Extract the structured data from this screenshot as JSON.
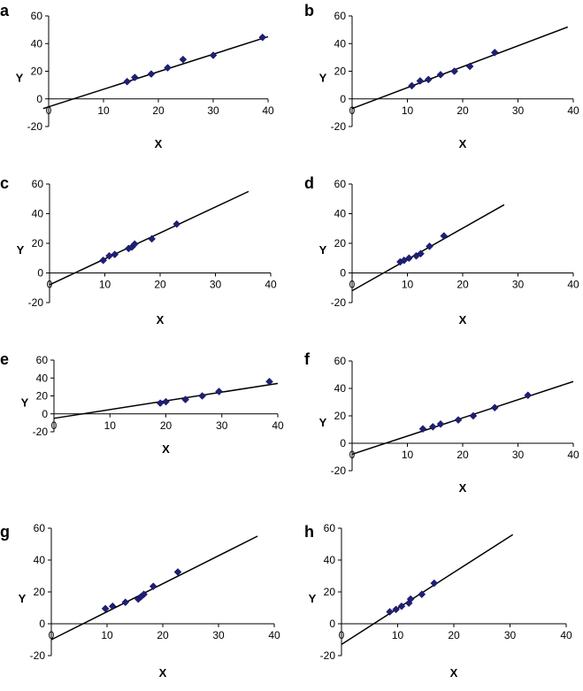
{
  "colors": {
    "marker": "#1f1f7a",
    "axis": "#000000",
    "line": "#000000"
  },
  "chart_data": [
    {
      "panel": "a",
      "type": "scatter",
      "xlabel": "X",
      "ylabel": "Y",
      "xlim": [
        0,
        40
      ],
      "ylim": [
        -20,
        60
      ],
      "xticks": [
        "0",
        "10",
        "20",
        "30",
        "40"
      ],
      "yticks": [
        "-20",
        "0",
        "20",
        "40",
        "60"
      ],
      "points": [
        [
          14.3,
          12.5
        ],
        [
          15.7,
          15.5
        ],
        [
          18.7,
          18
        ],
        [
          21.7,
          22.5
        ],
        [
          24.5,
          28.5
        ],
        [
          30,
          31.5
        ],
        [
          39,
          44.5
        ]
      ],
      "fit": [
        [
          -1,
          -7
        ],
        [
          40,
          45
        ]
      ]
    },
    {
      "panel": "b",
      "type": "scatter",
      "xlabel": "X",
      "ylabel": "Y",
      "xlim": [
        0,
        40
      ],
      "ylim": [
        -20,
        60
      ],
      "xticks": [
        "0",
        "10",
        "20",
        "30",
        "40"
      ],
      "yticks": [
        "-20",
        "0",
        "20",
        "40",
        "60"
      ],
      "points": [
        [
          10.8,
          9.5
        ],
        [
          12.3,
          13
        ],
        [
          13.8,
          14
        ],
        [
          16,
          17.5
        ],
        [
          18.5,
          20
        ],
        [
          21.3,
          23.5
        ],
        [
          25.8,
          33.5
        ]
      ],
      "fit": [
        [
          0,
          -7
        ],
        [
          39,
          52
        ]
      ]
    },
    {
      "panel": "c",
      "type": "scatter",
      "xlabel": "X",
      "ylabel": "Y",
      "xlim": [
        0,
        40
      ],
      "ylim": [
        -20,
        60
      ],
      "xticks": [
        "0",
        "10",
        "20",
        "30",
        "40"
      ],
      "yticks": [
        "-20",
        "0",
        "20",
        "40",
        "60"
      ],
      "points": [
        [
          9.7,
          8.5
        ],
        [
          10.8,
          11.5
        ],
        [
          11.8,
          12.5
        ],
        [
          14.3,
          16.5
        ],
        [
          14.9,
          17.5
        ],
        [
          15.4,
          19.5
        ],
        [
          18.5,
          23
        ],
        [
          23,
          33
        ]
      ],
      "fit": [
        [
          0,
          -8
        ],
        [
          36,
          55
        ]
      ]
    },
    {
      "panel": "d",
      "type": "scatter",
      "xlabel": "X",
      "ylabel": "Y",
      "xlim": [
        0,
        40
      ],
      "ylim": [
        -20,
        60
      ],
      "xticks": [
        "0",
        "10",
        "20",
        "30",
        "40"
      ],
      "yticks": [
        "-20",
        "0",
        "20",
        "40",
        "60"
      ],
      "points": [
        [
          8.7,
          7.5
        ],
        [
          9.4,
          8.5
        ],
        [
          10.3,
          10
        ],
        [
          11.6,
          11.5
        ],
        [
          12.4,
          13
        ],
        [
          14,
          18
        ],
        [
          16.6,
          25
        ]
      ],
      "fit": [
        [
          0,
          -12
        ],
        [
          27.5,
          46
        ]
      ]
    },
    {
      "panel": "e",
      "type": "scatter",
      "xlabel": "X",
      "ylabel": "Y",
      "xlim": [
        0,
        40
      ],
      "ylim": [
        -20,
        60
      ],
      "xticks": [
        "0",
        "10",
        "20",
        "30",
        "40"
      ],
      "yticks": [
        "-20",
        "0",
        "20",
        "40",
        "60"
      ],
      "points": [
        [
          19,
          12
        ],
        [
          20,
          13.5
        ],
        [
          23.5,
          16
        ],
        [
          26.5,
          20
        ],
        [
          29.5,
          25
        ],
        [
          38.5,
          36
        ]
      ],
      "fit": [
        [
          0,
          -5
        ],
        [
          40,
          34
        ]
      ]
    },
    {
      "panel": "f",
      "type": "scatter",
      "xlabel": "X",
      "ylabel": "Y",
      "xlim": [
        0,
        40
      ],
      "ylim": [
        -20,
        60
      ],
      "xticks": [
        "0",
        "10",
        "20",
        "30",
        "40"
      ],
      "yticks": [
        "-20",
        "0",
        "20",
        "40",
        "60"
      ],
      "points": [
        [
          12.8,
          10.5
        ],
        [
          14.6,
          12
        ],
        [
          16,
          14
        ],
        [
          19.2,
          17
        ],
        [
          21.9,
          20
        ],
        [
          25.8,
          26
        ],
        [
          31.8,
          35
        ]
      ],
      "fit": [
        [
          0,
          -8
        ],
        [
          40,
          45
        ]
      ]
    },
    {
      "panel": "g",
      "type": "scatter",
      "xlabel": "X",
      "ylabel": "Y",
      "xlim": [
        0,
        40
      ],
      "ylim": [
        -20,
        60
      ],
      "xticks": [
        "0",
        "10",
        "20",
        "30",
        "40"
      ],
      "yticks": [
        "-20",
        "0",
        "20",
        "40",
        "60"
      ],
      "points": [
        [
          9.7,
          9.5
        ],
        [
          11,
          11
        ],
        [
          13.3,
          13.5
        ],
        [
          15.6,
          15.5
        ],
        [
          16.1,
          17
        ],
        [
          16.6,
          18.5
        ],
        [
          18.3,
          23.5
        ],
        [
          22.7,
          32.5
        ]
      ],
      "fit": [
        [
          0,
          -10
        ],
        [
          37,
          55
        ]
      ]
    },
    {
      "panel": "h",
      "type": "scatter",
      "xlabel": "X",
      "ylabel": "Y",
      "xlim": [
        0,
        40
      ],
      "ylim": [
        -20,
        60
      ],
      "xticks": [
        "0",
        "10",
        "20",
        "30",
        "40"
      ],
      "yticks": [
        "-20",
        "0",
        "20",
        "40",
        "60"
      ],
      "points": [
        [
          8.6,
          7.5
        ],
        [
          9.7,
          9
        ],
        [
          10.7,
          11
        ],
        [
          12,
          13
        ],
        [
          12.3,
          15.5
        ],
        [
          14.3,
          18.5
        ],
        [
          16.5,
          25.5
        ]
      ],
      "fit": [
        [
          0,
          -13
        ],
        [
          30.5,
          56
        ]
      ]
    }
  ]
}
